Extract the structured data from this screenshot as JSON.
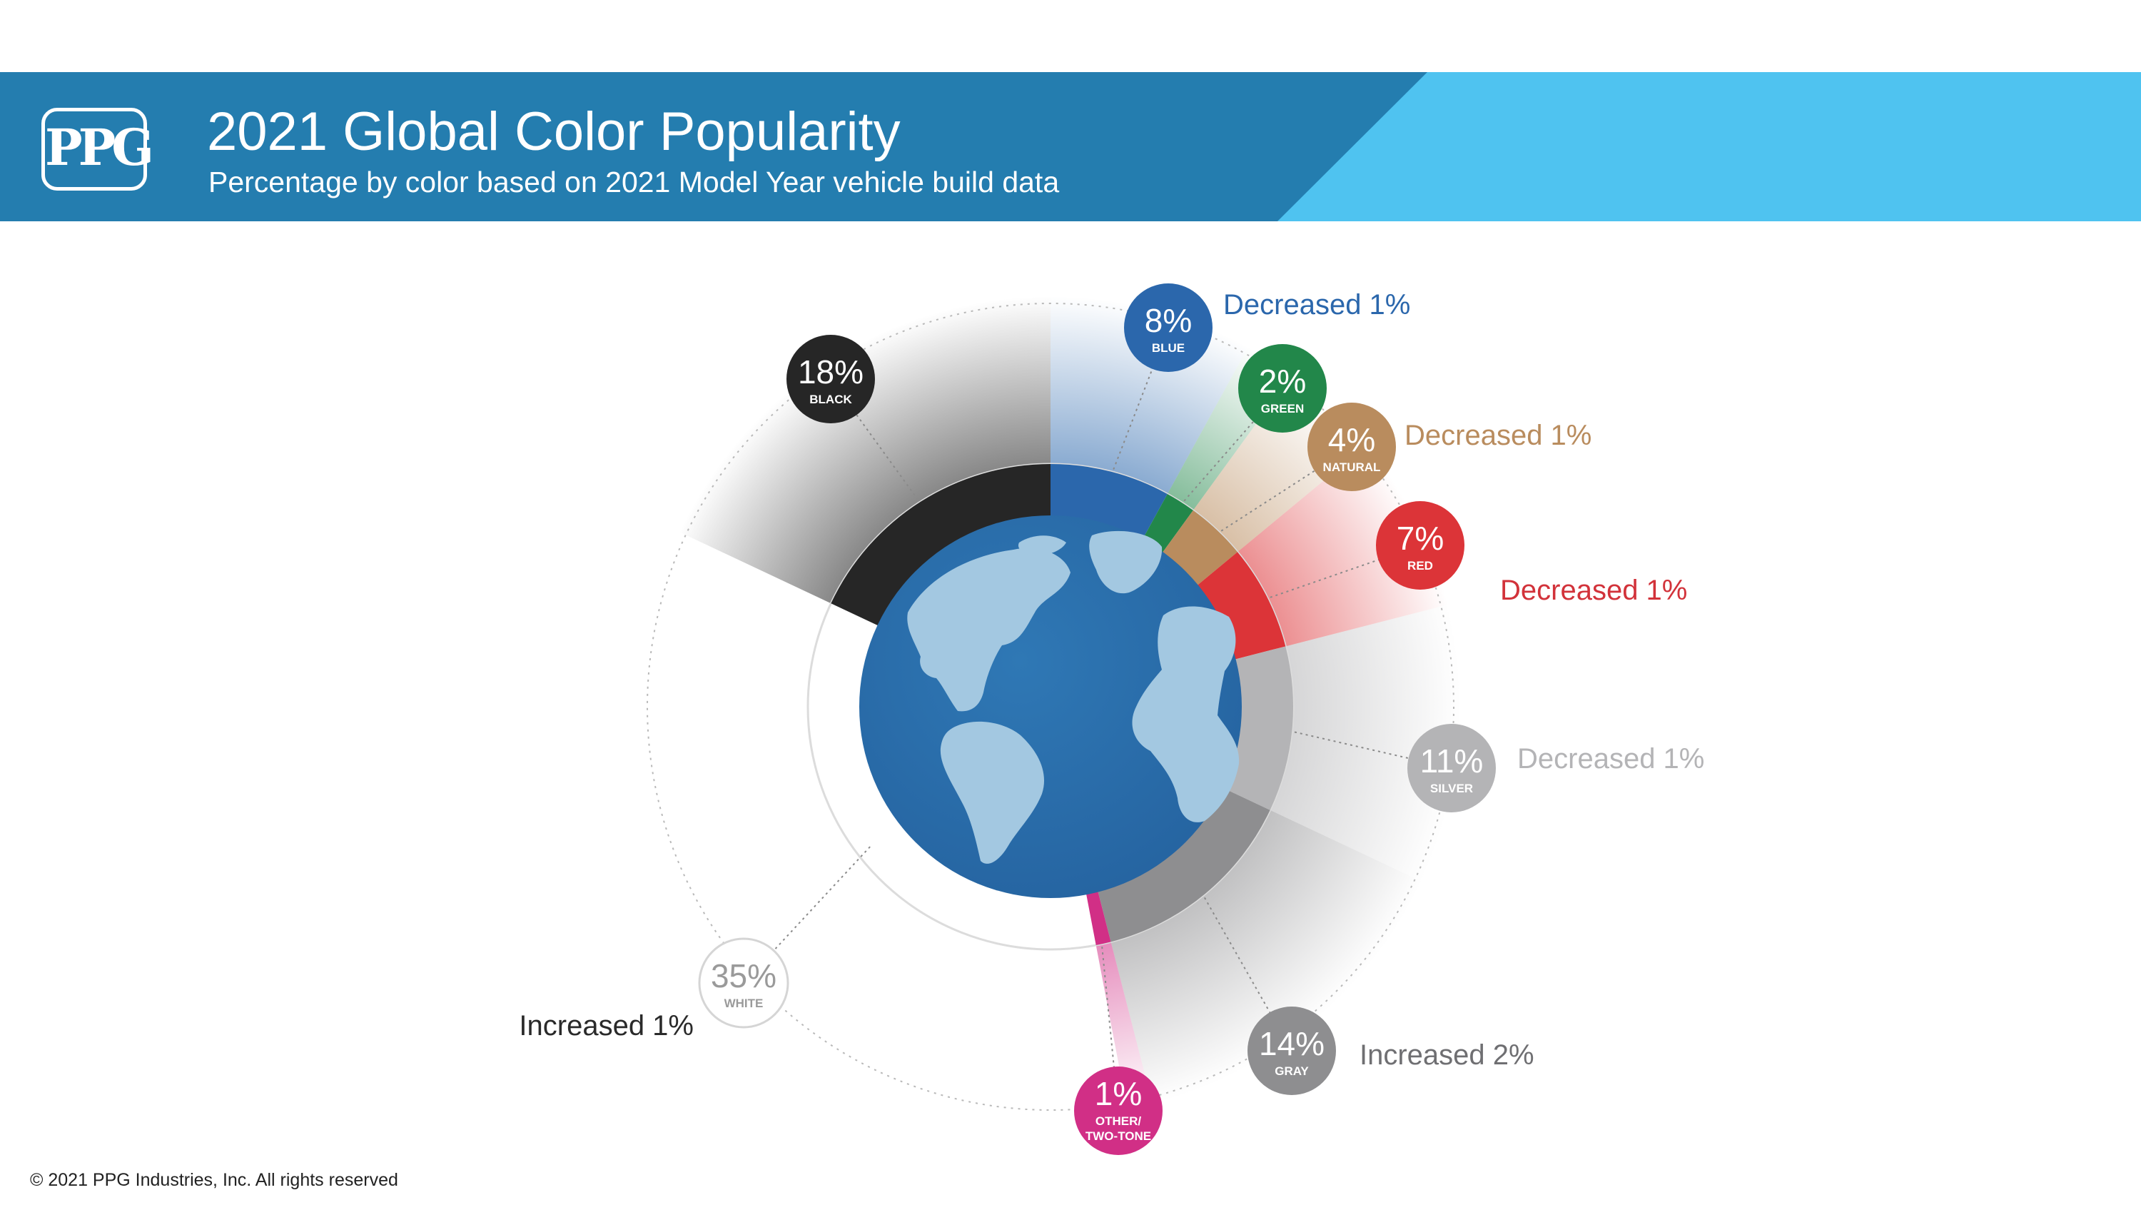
{
  "header": {
    "logo_text": "PPG",
    "title": "2021 Global Color Popularity",
    "subtitle": "Percentage by color based on 2021 Model Year vehicle build data",
    "colors": {
      "dark_band": "#247daf",
      "light_band": "#4fc3f0"
    }
  },
  "chart_data": {
    "type": "pie",
    "variant": "donut with globe center",
    "title": "2021 Global Color Popularity",
    "subtitle": "Percentage by color based on 2021 Model Year vehicle build data",
    "segments": [
      {
        "label": "BLUE",
        "percent_text": "8%",
        "value": 8,
        "change": "Decreased 1%",
        "color": "#2b67ac"
      },
      {
        "label": "GREEN",
        "percent_text": "2%",
        "value": 2,
        "change": "",
        "color": "#22874a"
      },
      {
        "label": "NATURAL",
        "percent_text": "4%",
        "value": 4,
        "change": "Decreased 1%",
        "color": "#b98c5e"
      },
      {
        "label": "RED",
        "percent_text": "7%",
        "value": 7,
        "change": "Decreased 1%",
        "color": "#dc3438"
      },
      {
        "label": "SILVER",
        "percent_text": "11%",
        "value": 11,
        "change": "Decreased 1%",
        "color": "#b4b4b6"
      },
      {
        "label": "GRAY",
        "percent_text": "14%",
        "value": 14,
        "change": "Increased 2%",
        "color": "#8e8e90"
      },
      {
        "label": "OTHER/\nTWO-TONE",
        "percent_text": "1%",
        "value": 1,
        "change": "",
        "color": "#d12f86"
      },
      {
        "label": "WHITE",
        "percent_text": "35%",
        "value": 35,
        "change": "Increased 1%",
        "color": "#ffffff"
      },
      {
        "label": "BLACK",
        "percent_text": "18%",
        "value": 18,
        "change": "",
        "color": "#262626"
      }
    ]
  },
  "footer": {
    "copyright": "© 2021 PPG Industries, Inc. All rights reserved"
  }
}
